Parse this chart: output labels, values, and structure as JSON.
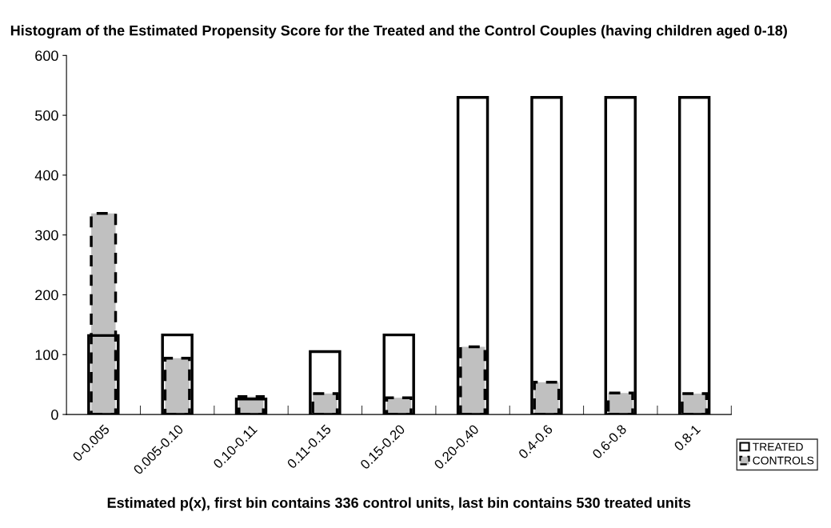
{
  "chart_data": {
    "type": "bar",
    "title": "Histogram of the Estimated Propensity Score for the Treated and the Control Couples (having children aged 0-18)",
    "xlabel": "Estimated p(x), first bin contains 336 control units, last bin contains 530 treated units",
    "categories": [
      "0-0.005",
      "0.005-0.10",
      "0.10-0.11",
      "0.11-0.15",
      "0.15-0.20",
      "0.20-0.40",
      "0.4-0.6",
      "0.6-0.8",
      "0.8-1"
    ],
    "series": [
      {
        "name": "TREATED",
        "color": "#000000",
        "line_style": "solid",
        "values": [
          132,
          133,
          26,
          105,
          133,
          530,
          530,
          530,
          530
        ]
      },
      {
        "name": "CONTROLS",
        "color": "#c0c0c0",
        "line_style": "dashed",
        "values": [
          336,
          94,
          30,
          35,
          28,
          113,
          54,
          36,
          35
        ]
      }
    ],
    "ylim": [
      0,
      600
    ],
    "yticks": [
      0,
      100,
      200,
      300,
      400,
      500,
      600
    ],
    "grid": false,
    "legend": "bottom right"
  }
}
